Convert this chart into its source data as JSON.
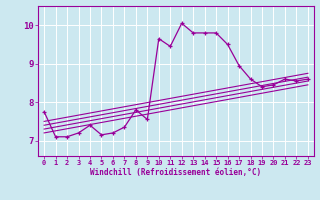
{
  "xlabel": "Windchill (Refroidissement éolien,°C)",
  "bg_color": "#cce8f0",
  "line_color": "#990099",
  "xlim": [
    -0.5,
    23.5
  ],
  "ylim": [
    6.6,
    10.5
  ],
  "yticks": [
    7,
    8,
    9,
    10
  ],
  "xticks": [
    0,
    1,
    2,
    3,
    4,
    5,
    6,
    7,
    8,
    9,
    10,
    11,
    12,
    13,
    14,
    15,
    16,
    17,
    18,
    19,
    20,
    21,
    22,
    23
  ],
  "scatter_x": [
    0,
    1,
    2,
    3,
    4,
    5,
    6,
    7,
    8,
    9,
    10,
    11,
    12,
    13,
    14,
    15,
    16,
    17,
    18,
    19,
    20,
    21,
    22,
    23
  ],
  "scatter_y": [
    7.75,
    7.1,
    7.1,
    7.2,
    7.4,
    7.15,
    7.2,
    7.35,
    7.8,
    7.55,
    9.65,
    9.45,
    10.05,
    9.8,
    9.8,
    9.8,
    9.5,
    8.95,
    8.6,
    8.4,
    8.45,
    8.6,
    8.55,
    8.6
  ],
  "reg_lines": [
    {
      "x": [
        0,
        23
      ],
      "y": [
        7.3,
        8.55
      ]
    },
    {
      "x": [
        0,
        23
      ],
      "y": [
        7.2,
        8.45
      ]
    },
    {
      "x": [
        0,
        23
      ],
      "y": [
        7.4,
        8.65
      ]
    },
    {
      "x": [
        0,
        23
      ],
      "y": [
        7.5,
        8.75
      ]
    }
  ],
  "grid_color": "#ffffff",
  "tick_fontsize": 5,
  "xlabel_fontsize": 5.5
}
